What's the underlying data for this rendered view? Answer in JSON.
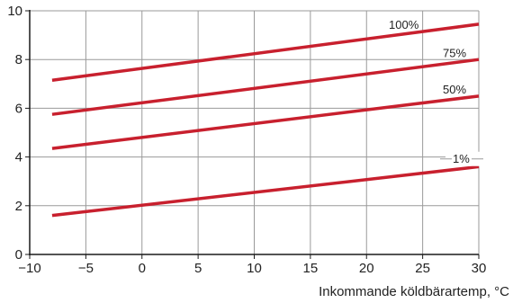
{
  "chart_data": {
    "type": "line",
    "title": "",
    "xlabel": "Inkommande köldbärartemp, °C",
    "ylabel": "",
    "xlim": [
      -10,
      30
    ],
    "ylim": [
      0,
      10
    ],
    "x_ticks": [
      -10,
      -5,
      0,
      5,
      10,
      15,
      20,
      25,
      30
    ],
    "y_ticks": [
      0,
      2,
      4,
      6,
      8,
      10
    ],
    "x_tick_labels": [
      "−10",
      "−5",
      "0",
      "5",
      "10",
      "15",
      "20",
      "25",
      "30"
    ],
    "y_tick_labels": [
      "0",
      "2",
      "4",
      "6",
      "8",
      "10"
    ],
    "grid": true,
    "line_color": "#c8202e",
    "series": [
      {
        "name": "100%",
        "x": [
          -8,
          30
        ],
        "y": [
          7.15,
          9.45
        ]
      },
      {
        "name": "75%",
        "x": [
          -8,
          30
        ],
        "y": [
          5.75,
          8.0
        ]
      },
      {
        "name": "50%",
        "x": [
          -8,
          30
        ],
        "y": [
          4.35,
          6.5
        ]
      },
      {
        "name": "1%",
        "x": [
          -8,
          30
        ],
        "y": [
          1.6,
          3.6
        ]
      }
    ]
  }
}
